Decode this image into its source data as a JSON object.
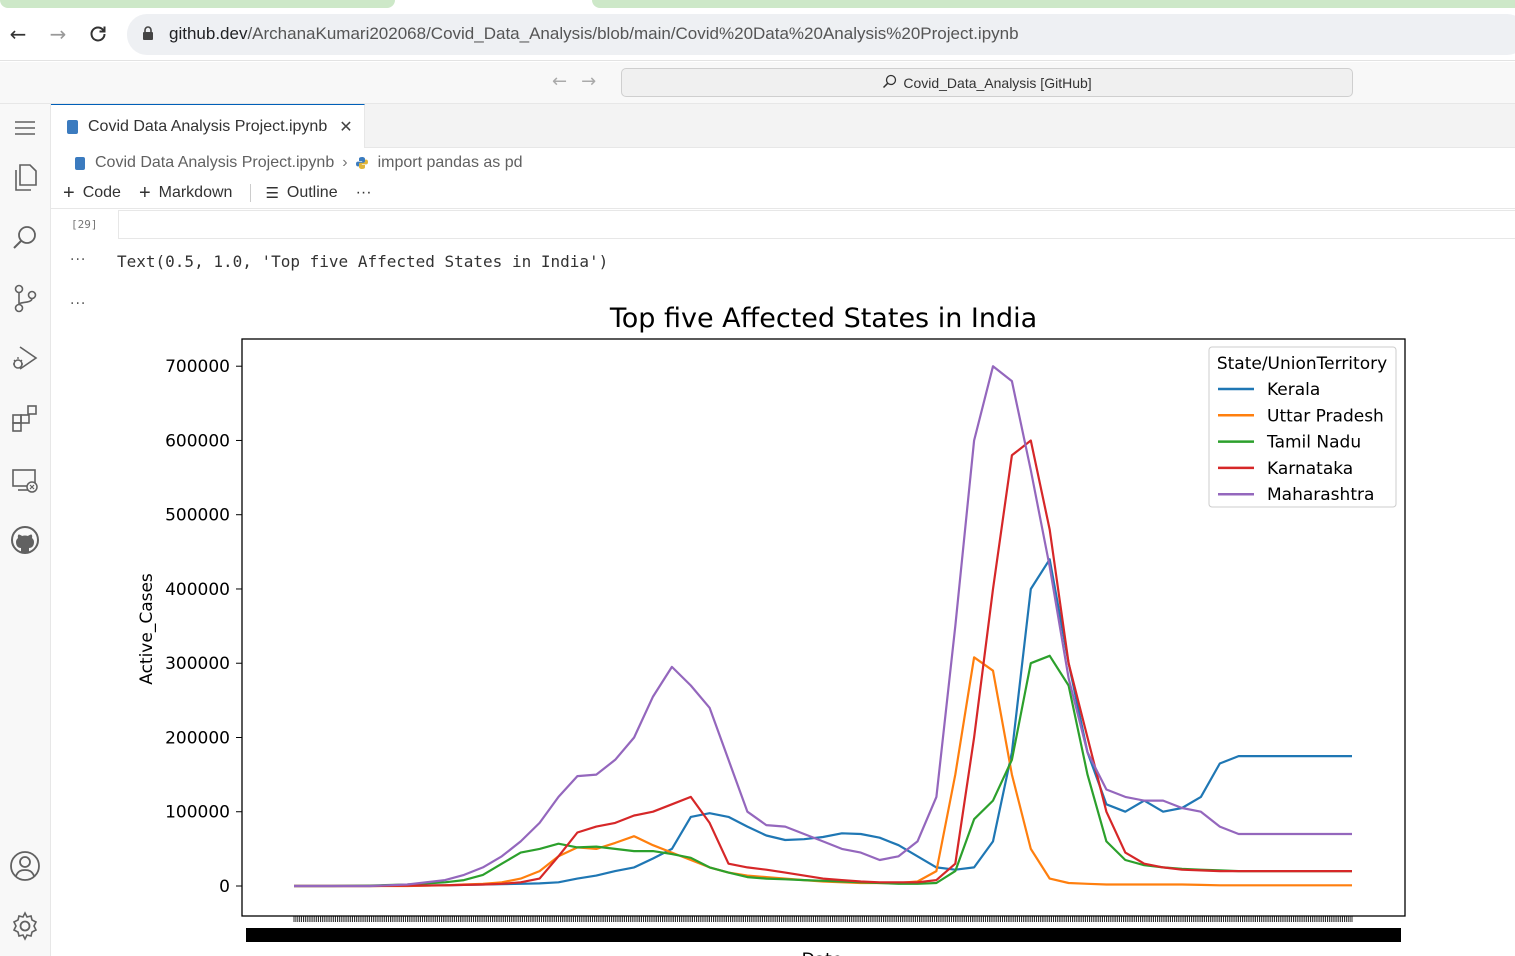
{
  "browser": {
    "url_host": "github.dev",
    "url_path": "/ArchanaKumari202068/Covid_Data_Analysis/blob/main/Covid%20Data%20Analysis%20Project.ipynb"
  },
  "titlebar": {
    "command_center": "Covid_Data_Analysis [GitHub]"
  },
  "editor": {
    "tab_label": "Covid Data Analysis Project.ipynb",
    "breadcrumb": {
      "file": "Covid Data Analysis Project.ipynb",
      "symbol": "import pandas as pd"
    }
  },
  "toolbar": {
    "code_label": "Code",
    "markdown_label": "Markdown",
    "outline_label": "Outline",
    "more_label": "···"
  },
  "cell": {
    "execution_count": "[29]",
    "output_dots": "···",
    "output_text": "Text(0.5, 1.0, 'Top five Affected States in India')"
  },
  "activity_icons": [
    "menu-icon",
    "explorer-icon",
    "search-icon",
    "source-control-icon",
    "run-debug-icon",
    "extensions-icon",
    "remote-explorer-icon",
    "github-icon",
    "account-icon",
    "settings-gear-icon"
  ],
  "chart_data": {
    "type": "line",
    "title": "Top five Affected States in India",
    "ylabel": "Active_Cases",
    "xlabel": "Date",
    "ylim": [
      -40000,
      740000
    ],
    "yticks": [
      "0",
      "100000",
      "200000",
      "300000",
      "400000",
      "500000",
      "600000",
      "700000"
    ],
    "legend": {
      "title": "State/UnionTerritory",
      "placement": "top-right"
    },
    "x_index": [
      0,
      20,
      40,
      60,
      80,
      90,
      100,
      110,
      120,
      130,
      140,
      150,
      160,
      170,
      180,
      190,
      200,
      210,
      220,
      230,
      240,
      250,
      260,
      270,
      280,
      290,
      300,
      310,
      320,
      330,
      340,
      350,
      360,
      370,
      380,
      390,
      400,
      410,
      420,
      430,
      440,
      450,
      460,
      470,
      480,
      490,
      500,
      510,
      520,
      530,
      540,
      550,
      560
    ],
    "series": [
      {
        "name": "Kerala",
        "color": "#1f77b4",
        "values": [
          0,
          0,
          0,
          500,
          1000,
          1500,
          2000,
          2500,
          3000,
          3500,
          5000,
          10000,
          14000,
          20000,
          25000,
          37000,
          50000,
          93000,
          98000,
          93000,
          80000,
          68000,
          62000,
          63000,
          66000,
          71000,
          70000,
          65000,
          55000,
          40000,
          25000,
          22000,
          25000,
          60000,
          180000,
          400000,
          440000,
          300000,
          180000,
          110000,
          100000,
          115000,
          100000,
          105000,
          120000,
          165000,
          175000,
          175000,
          175000,
          175000,
          175000,
          175000,
          175000
        ]
      },
      {
        "name": "Uttar Pradesh",
        "color": "#ff7f0e",
        "values": [
          0,
          0,
          0,
          0,
          1000,
          2000,
          3000,
          5000,
          10000,
          20000,
          40000,
          52000,
          50000,
          58000,
          67000,
          55000,
          45000,
          35000,
          25000,
          18000,
          14000,
          12000,
          10000,
          8000,
          6000,
          5000,
          4000,
          4000,
          4000,
          6000,
          20000,
          150000,
          308000,
          290000,
          150000,
          50000,
          10000,
          4000,
          3000,
          2000,
          2000,
          2000,
          2000,
          2000,
          1500,
          1000,
          1000,
          1000,
          1000,
          1000,
          1000,
          1000,
          1000
        ]
      },
      {
        "name": "Tamil Nadu",
        "color": "#2ca02c",
        "values": [
          0,
          0,
          500,
          2000,
          5000,
          8000,
          15000,
          30000,
          45000,
          50000,
          57000,
          52000,
          53000,
          50000,
          47000,
          47000,
          43000,
          38000,
          25000,
          18000,
          12000,
          10000,
          9000,
          8000,
          7000,
          6000,
          5000,
          4000,
          3000,
          3000,
          4000,
          20000,
          90000,
          115000,
          170000,
          300000,
          310000,
          270000,
          150000,
          60000,
          35000,
          28000,
          25000,
          23000,
          22000,
          21000,
          20000,
          20000,
          20000,
          20000,
          20000,
          20000,
          20000
        ]
      },
      {
        "name": "Karnataka",
        "color": "#d62728",
        "values": [
          0,
          0,
          0,
          500,
          1000,
          1500,
          2000,
          3000,
          5000,
          10000,
          40000,
          72000,
          80000,
          85000,
          95000,
          100000,
          110000,
          120000,
          85000,
          30000,
          25000,
          22000,
          18000,
          14000,
          10000,
          8000,
          6000,
          5000,
          5000,
          5000,
          8000,
          30000,
          200000,
          400000,
          580000,
          600000,
          480000,
          300000,
          200000,
          100000,
          45000,
          30000,
          25000,
          22000,
          21000,
          20000,
          20000,
          20000,
          20000,
          20000,
          20000,
          20000,
          20000
        ]
      },
      {
        "name": "Maharashtra",
        "color": "#9467bd",
        "values": [
          0,
          0,
          0,
          2000,
          8000,
          15000,
          25000,
          40000,
          60000,
          85000,
          120000,
          148000,
          150000,
          170000,
          200000,
          255000,
          295000,
          270000,
          240000,
          170000,
          100000,
          82000,
          80000,
          70000,
          60000,
          50000,
          45000,
          35000,
          40000,
          60000,
          120000,
          350000,
          600000,
          700000,
          680000,
          560000,
          430000,
          280000,
          180000,
          130000,
          120000,
          115000,
          115000,
          105000,
          100000,
          80000,
          70000,
          70000,
          70000,
          70000,
          70000,
          70000,
          70000
        ]
      }
    ]
  }
}
